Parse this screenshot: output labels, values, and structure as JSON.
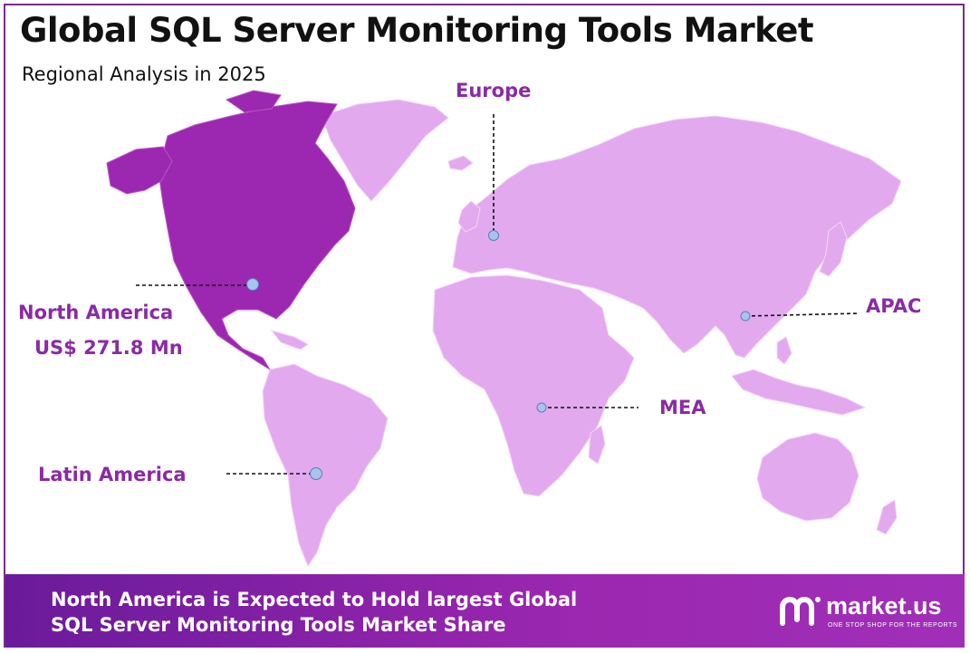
{
  "header": {
    "title": "Global SQL Server Monitoring Tools Market",
    "subtitle": "Regional Analysis in 2025"
  },
  "regions": {
    "north_america": {
      "name": "North America",
      "value": "US$ 271.8 Mn",
      "highlight_color": "#9c27b0"
    },
    "europe": {
      "name": "Europe"
    },
    "apac": {
      "name": "APAC"
    },
    "mea": {
      "name": "MEA"
    },
    "latin_america": {
      "name": "Latin America"
    }
  },
  "footer": {
    "line1": "North America is Expected to Hold largest Global",
    "line2": "SQL Server Monitoring Tools Market Share",
    "brand_name": "market.us",
    "brand_tagline": "ONE STOP SHOP FOR THE REPORTS"
  },
  "colors": {
    "accent": "#8b2aa5",
    "land": "#e3a9ee",
    "highlight": "#9c27b0",
    "marker": "#a7c4ee"
  }
}
